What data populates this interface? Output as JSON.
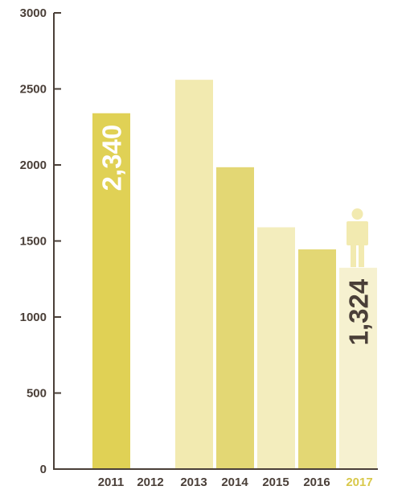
{
  "chart_data": {
    "type": "bar",
    "categories": [
      "2011",
      "2012",
      "2013",
      "2014",
      "2015",
      "2016",
      "2017"
    ],
    "values": [
      2340,
      null,
      2560,
      1985,
      1590,
      1445,
      1324
    ],
    "ylim": [
      0,
      3000
    ],
    "yticks": [
      "0",
      "500",
      "1000",
      "1500",
      "2000",
      "2500",
      "3000"
    ],
    "data_labels": [
      {
        "category": "2011",
        "text": "2,340"
      },
      {
        "category": "2017",
        "text": "1,324"
      }
    ],
    "grid": false,
    "colors": {
      "bars": [
        "#e0d155",
        null,
        "#f2eab0",
        "#e3d774",
        "#f3edbd",
        "#e3d774",
        "#f6f1d0"
      ],
      "axis": "#4a3f38",
      "tick_text": "#4a3f38",
      "highlight_category_text": "#d8c84a",
      "label_2011": "#ffffff",
      "label_2017": "#4a3f38",
      "person_icon": "#f2eab0"
    },
    "icons": [
      "person-icon"
    ]
  }
}
